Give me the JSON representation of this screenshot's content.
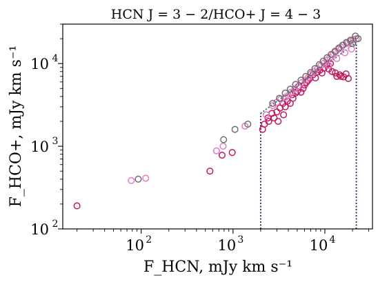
{
  "chart_data": {
    "type": "scatter",
    "title": "HCN J = 3 − 2/HCO+ J = 4 − 3",
    "xlabel": "F_HCN, mJy km s⁻¹",
    "ylabel": "F_HCO+, mJy km s⁻¹",
    "xscale": "log",
    "yscale": "log",
    "xlim": [
      14,
      33000
    ],
    "ylim": [
      100,
      30000
    ],
    "x_ticks": [
      {
        "value": 100,
        "base": "10",
        "exp": "2"
      },
      {
        "value": 1000,
        "base": "10",
        "exp": "3"
      },
      {
        "value": 10000,
        "base": "10",
        "exp": "4"
      }
    ],
    "y_ticks": [
      {
        "value": 100,
        "base": "10",
        "exp": "2"
      },
      {
        "value": 1000,
        "base": "10",
        "exp": "3"
      },
      {
        "value": 10000,
        "base": "10",
        "exp": "4"
      }
    ],
    "vertical_lines": [
      2000,
      22000
    ],
    "reference_line": {
      "x": [
        2000,
        22000
      ],
      "y": [
        2500,
        18000
      ]
    },
    "series": [
      {
        "color": "#c2185b",
        "points": [
          [
            20,
            190
          ],
          [
            560,
            500
          ],
          [
            760,
            780
          ],
          [
            980,
            840
          ],
          [
            2100,
            1600
          ],
          [
            2200,
            1850
          ],
          [
            2400,
            2200
          ],
          [
            2450,
            2000
          ],
          [
            2650,
            2500
          ],
          [
            2800,
            2200
          ],
          [
            3000,
            2600
          ],
          [
            3100,
            2000
          ],
          [
            3250,
            2900
          ],
          [
            3500,
            3300
          ],
          [
            3550,
            2400
          ],
          [
            3700,
            3000
          ],
          [
            3900,
            3500
          ],
          [
            4200,
            3300
          ],
          [
            4400,
            4200
          ],
          [
            4500,
            3800
          ],
          [
            4800,
            4400
          ],
          [
            5000,
            4600
          ],
          [
            5200,
            5300
          ],
          [
            5500,
            4500
          ],
          [
            5800,
            5000
          ],
          [
            6000,
            5500
          ],
          [
            6300,
            5900
          ],
          [
            6600,
            6300
          ],
          [
            6900,
            6700
          ],
          [
            7400,
            7300
          ],
          [
            7900,
            6700
          ],
          [
            8300,
            7900
          ],
          [
            8800,
            8300
          ],
          [
            9300,
            7700
          ],
          [
            9800,
            8800
          ],
          [
            10500,
            9700
          ],
          [
            11000,
            8600
          ],
          [
            11500,
            10000
          ],
          [
            12000,
            8000
          ],
          [
            13000,
            7700
          ],
          [
            13500,
            7000
          ],
          [
            14500,
            7300
          ],
          [
            15000,
            7000
          ],
          [
            16000,
            6900
          ],
          [
            17000,
            7500
          ],
          [
            18000,
            6600
          ]
        ]
      },
      {
        "color": "#e377c2",
        "points": [
          [
            78,
            385
          ],
          [
            112,
            410
          ],
          [
            660,
            880
          ],
          [
            780,
            1000
          ],
          [
            1350,
            1750
          ],
          [
            2300,
            2400
          ],
          [
            2700,
            3100
          ],
          [
            3000,
            3400
          ],
          [
            3300,
            3700
          ],
          [
            3700,
            3900
          ],
          [
            4000,
            4100
          ],
          [
            4300,
            4500
          ],
          [
            4700,
            4900
          ],
          [
            5100,
            5300
          ],
          [
            5600,
            5900
          ],
          [
            6100,
            6300
          ],
          [
            6600,
            6800
          ],
          [
            7100,
            7500
          ],
          [
            7700,
            8000
          ],
          [
            8300,
            8700
          ],
          [
            9000,
            9400
          ],
          [
            9700,
            10100
          ],
          [
            10500,
            11000
          ],
          [
            11300,
            11900
          ],
          [
            12200,
            12800
          ],
          [
            13000,
            13800
          ],
          [
            14000,
            14800
          ],
          [
            15000,
            15800
          ],
          [
            16000,
            16800
          ],
          [
            17500,
            17500
          ],
          [
            19000,
            18500
          ],
          [
            20500,
            19500
          ],
          [
            22000,
            20000
          ],
          [
            11000,
            9500
          ],
          [
            13500,
            11500
          ],
          [
            16500,
            13500
          ],
          [
            19500,
            15000
          ]
        ]
      },
      {
        "color": "#6e6e6e",
        "points": [
          [
            93,
            400
          ],
          [
            790,
            1200
          ],
          [
            1050,
            1600
          ],
          [
            1450,
            1850
          ],
          [
            2700,
            3300
          ],
          [
            3200,
            3800
          ],
          [
            3700,
            4400
          ],
          [
            4200,
            4900
          ],
          [
            4800,
            5600
          ],
          [
            5500,
            6300
          ],
          [
            6200,
            7000
          ],
          [
            7000,
            7800
          ],
          [
            7800,
            8700
          ],
          [
            8700,
            9700
          ],
          [
            9600,
            10700
          ],
          [
            10600,
            11800
          ],
          [
            11700,
            12900
          ],
          [
            12900,
            14100
          ],
          [
            14200,
            15400
          ],
          [
            15600,
            16700
          ],
          [
            17200,
            18000
          ],
          [
            19000,
            19200
          ],
          [
            21500,
            21500
          ],
          [
            23000,
            20000
          ],
          [
            20000,
            17500
          ]
        ]
      }
    ]
  }
}
